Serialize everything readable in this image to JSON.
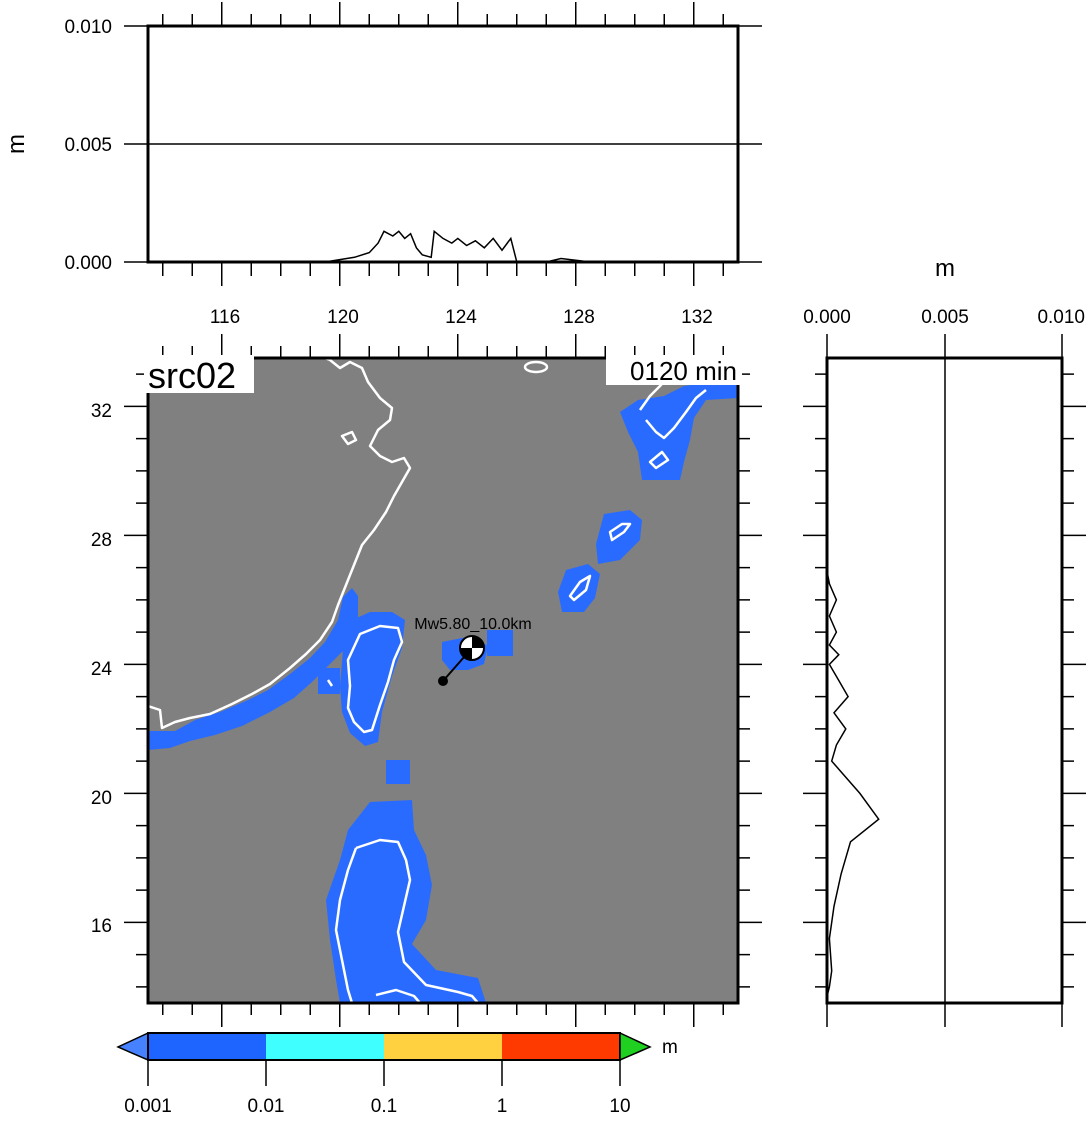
{
  "map": {
    "title": "src02",
    "time_label": "0120 min",
    "event_label": "Mw5.80_10.0km",
    "lon_ticks": [
      "116",
      "120",
      "124",
      "128",
      "132"
    ],
    "lat_ticks": [
      "32",
      "28",
      "24",
      "20",
      "16"
    ],
    "land_color": "#808080",
    "wave_color": "#2a6bff",
    "coast_color": "#ffffff"
  },
  "top_profile": {
    "ylabel": "m",
    "y_ticks": [
      "0.010",
      "0.005",
      "0.000"
    ]
  },
  "side_profile": {
    "xlabel": "m",
    "x_ticks": [
      "0.000",
      "0.005",
      "0.010"
    ]
  },
  "colorbar": {
    "unit": "m",
    "tick_labels": [
      "0.001",
      "0.01",
      "0.1",
      "1",
      "10"
    ],
    "colors": [
      "#1e64ff",
      "#00c8ff",
      "#40ffff",
      "#ffff60",
      "#ffa000",
      "#ff2800"
    ],
    "under_color": "#4682ff",
    "over_color": "#20d020"
  },
  "chart_data": [
    {
      "type": "line",
      "title": "",
      "xlabel": "",
      "ylabel": "m",
      "xlim": [
        113.5,
        133.5
      ],
      "ylim": [
        0,
        0.01
      ],
      "series": [
        {
          "x": [
            113.5,
            119.5,
            120.5,
            121.0,
            121.3,
            121.5,
            121.8,
            122.0,
            122.2,
            122.4,
            122.6,
            122.8,
            123.1,
            123.2,
            123.5,
            123.8,
            124.0,
            124.3,
            124.6,
            124.9,
            125.2,
            125.5,
            125.8,
            126.0,
            127.0,
            127.5,
            128.5,
            133.5
          ],
          "y": [
            0.0,
            0.0,
            0.0002,
            0.0004,
            0.0008,
            0.0013,
            0.0011,
            0.0013,
            0.001,
            0.0012,
            0.0006,
            0.0003,
            0.0002,
            0.0013,
            0.001,
            0.0008,
            0.001,
            0.0007,
            0.0009,
            0.0006,
            0.001,
            0.0005,
            0.001,
            0.0,
            0.0,
            0.00015,
            0.0,
            0.0
          ]
        }
      ]
    },
    {
      "type": "line",
      "title": "",
      "xlabel": "m",
      "ylabel": "",
      "xlim": [
        0,
        0.01
      ],
      "ylim": [
        13.5,
        33.5
      ],
      "series": [
        {
          "x": [
            0.0,
            0.0001,
            0.0002,
            0.0001,
            0.0003,
            0.0006,
            0.001,
            0.0022,
            0.0014,
            0.0008,
            0.0002,
            0.0004,
            0.0008,
            0.0003,
            0.0009,
            0.0005,
            0.0001,
            0.0005,
            0.0001,
            0.0004,
            0.0001,
            0.0004,
            0.0001,
            0.0
          ],
          "y": [
            13.7,
            14.0,
            14.5,
            15.5,
            16.5,
            17.5,
            18.5,
            19.2,
            20.0,
            20.5,
            21.0,
            21.5,
            22.0,
            22.5,
            23.0,
            23.5,
            24.0,
            24.3,
            24.6,
            25.0,
            25.5,
            26.0,
            26.5,
            26.9
          ]
        }
      ]
    }
  ]
}
